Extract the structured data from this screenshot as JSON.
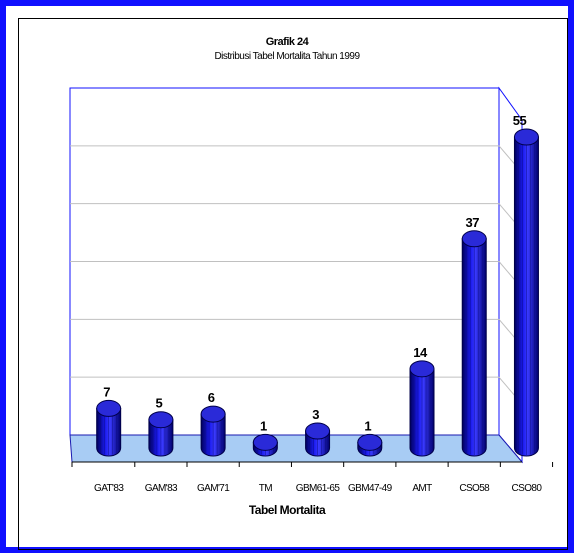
{
  "chart_data": {
    "type": "bar",
    "title": "Grafik 24",
    "subtitle": "Distribusi Tabel Mortalita Tahun 1999",
    "xlabel": "Tabel Mortalita",
    "ylabel": "",
    "categories": [
      "GAT'83",
      "GAM'83",
      "GAM'71",
      "TM",
      "GBM61-65",
      "GBM47-49",
      "AMT",
      "CSO58",
      "CSO80"
    ],
    "values": [
      7,
      5,
      6,
      1,
      3,
      1,
      14,
      37,
      55
    ],
    "ylim": [
      0,
      60
    ],
    "grid": true,
    "legend": "none",
    "colors": {
      "bar": "#1a1aee",
      "bar_dark": "#00007a",
      "bar_top": "#2a2ad8",
      "floor": "#a8ccf4",
      "frame_border": "#1010ff",
      "grid": "#c0c0c0",
      "wall_edge": "#1010ff"
    }
  }
}
